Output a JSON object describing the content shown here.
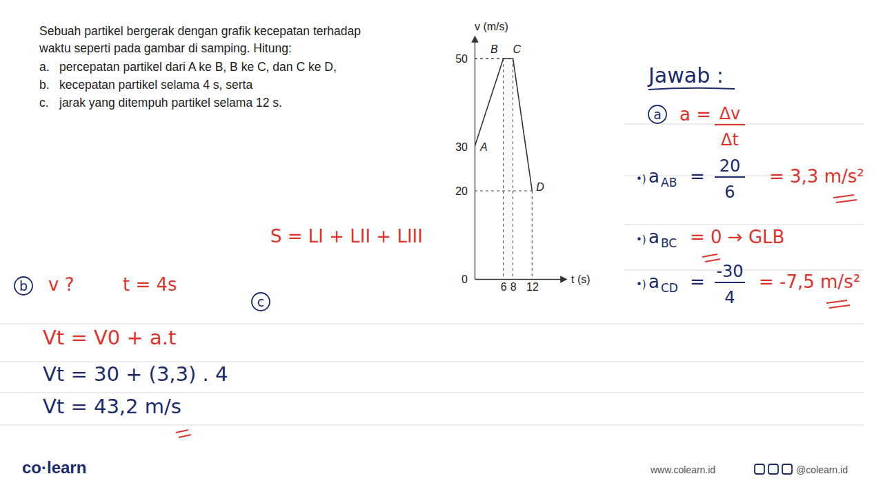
{
  "problem": {
    "intro": [
      "Sebuah partikel bergerak dengan grafik kecepatan terhadap",
      "waktu seperti pada gambar di samping. Hitung:"
    ],
    "items": [
      {
        "letter": "a.",
        "text": "percepatan partikel dari A ke B, B ke C, dan C ke D,"
      },
      {
        "letter": "b.",
        "text": "kecepatan partikel selama 4 s, serta"
      },
      {
        "letter": "c.",
        "text": "jarak yang ditempuh partikel selama 12 s."
      }
    ]
  },
  "chart_data": {
    "type": "line",
    "x_label": "t (s)",
    "y_label": "v (m/s)",
    "series": [
      {
        "name": "v",
        "color": "#333333",
        "x": [
          0,
          6,
          8,
          12
        ],
        "values": [
          30,
          50,
          50,
          20
        ],
        "point_labels": [
          "A",
          "B",
          "C",
          "D"
        ],
        "line_style": "solid"
      }
    ],
    "xlim": [
      0,
      19
    ],
    "ylim": [
      0,
      55
    ],
    "xticks": [
      6,
      8,
      12
    ],
    "yticks": [
      0,
      20,
      30,
      50
    ],
    "grid": false
  },
  "answer": {
    "heading": "Jawab :",
    "part_a": {
      "label": "a",
      "formula": {
        "lhs": "a =",
        "num": "Δv",
        "den": "Δt"
      },
      "rows": [
        {
          "bullet": "•)",
          "sym": "a",
          "sub": "AB",
          "eq": "=",
          "num": "20",
          "den": "6",
          "result": "= 3,3 m/s²"
        },
        {
          "bullet": "•)",
          "sym": "a",
          "sub": "BC",
          "result": "= 0 → GLB"
        },
        {
          "bullet": "•)",
          "sym": "a",
          "sub": "CD",
          "eq": "=",
          "num": "-30",
          "den": "4",
          "result": "= -7,5 m/s²"
        }
      ]
    },
    "part_b": {
      "label": "b",
      "question": "v ?",
      "given": "t = 4s",
      "lines": [
        "Vt = V0 + a.t",
        "Vt = 30 + (3,3) . 4",
        "Vt = 43,2 m/s"
      ]
    },
    "part_c": {
      "label": "c",
      "formula": "S = LI + LII + LIII"
    }
  },
  "footer": {
    "brand": "co·learn",
    "website": "www.colearn.id",
    "social": "@colearn.id"
  }
}
